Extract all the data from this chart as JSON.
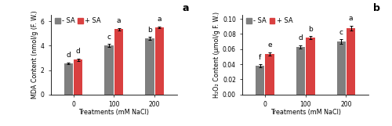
{
  "chart_a": {
    "title": "a",
    "ylabel": "MDA Content (nmol/g (F. W.)",
    "xlabel": "Treatments (mM NaCl)",
    "groups": [
      "-SA",
      "+SA"
    ],
    "categories": [
      "0",
      "100",
      "200"
    ],
    "values_minus_sa": [
      2.55,
      4.0,
      4.6
    ],
    "values_plus_sa": [
      2.85,
      5.35,
      5.5
    ],
    "se_minus_sa": [
      0.08,
      0.12,
      0.1
    ],
    "se_plus_sa": [
      0.1,
      0.1,
      0.07
    ],
    "letters_minus_sa": [
      "d",
      "c",
      "b"
    ],
    "letters_plus_sa": [
      "d",
      "a",
      "a"
    ],
    "ylim": [
      0,
      6.5
    ],
    "yticks": [
      0,
      2,
      4,
      6
    ],
    "color_minus": "#7f7f7f",
    "color_plus": "#d94040"
  },
  "chart_b": {
    "title": "b",
    "ylabel": "H₂O₂ Content (μmol/g F. W.)",
    "xlabel": "Treatments (mM NaCl)",
    "groups": [
      "-SA",
      "+SA"
    ],
    "categories": [
      "0",
      "100",
      "200"
    ],
    "values_minus_sa": [
      0.038,
      0.063,
      0.07
    ],
    "values_plus_sa": [
      0.054,
      0.075,
      0.088
    ],
    "se_minus_sa": [
      0.002,
      0.002,
      0.003
    ],
    "se_plus_sa": [
      0.002,
      0.002,
      0.003
    ],
    "letters_minus_sa": [
      "f",
      "d",
      "c"
    ],
    "letters_plus_sa": [
      "e",
      "b",
      "a"
    ],
    "ylim": [
      0,
      0.105
    ],
    "yticks": [
      0,
      0.02,
      0.04,
      0.06,
      0.08,
      0.1
    ],
    "color_minus": "#7f7f7f",
    "color_plus": "#d94040"
  },
  "legend_labels": [
    "- SA",
    "+ SA"
  ],
  "bar_width": 0.22,
  "fontsize_labels": 5.8,
  "fontsize_ticks": 5.5,
  "fontsize_letters": 6.5,
  "fontsize_title": 9,
  "fontsize_legend": 6.0
}
